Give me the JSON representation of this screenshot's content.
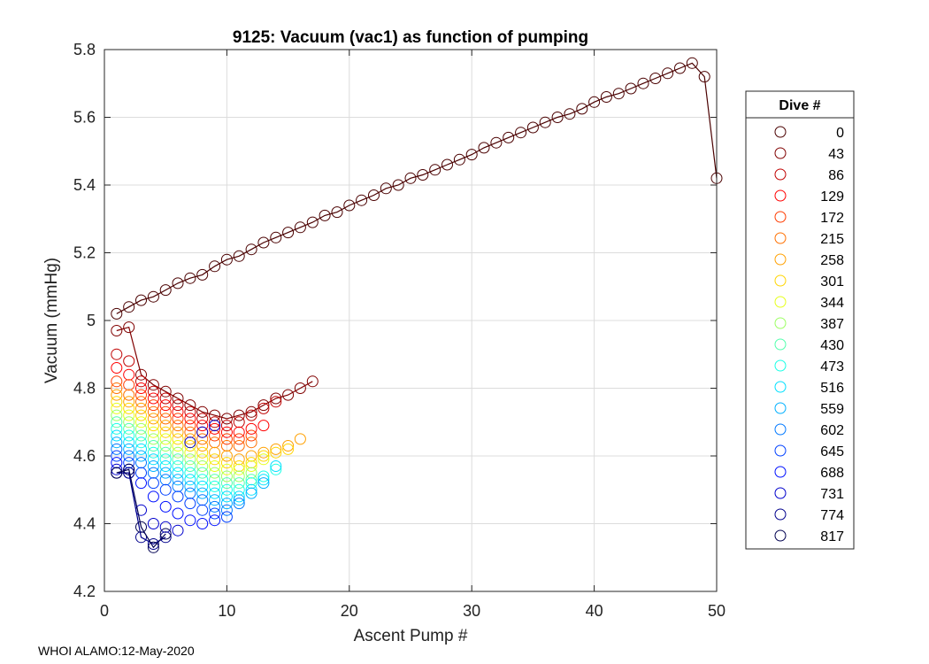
{
  "chart_data": {
    "type": "scatter",
    "title": "9125: Vacuum (vac1) as function of pumping",
    "xlabel": "Ascent Pump #",
    "ylabel": "Vacuum (mmHg)",
    "xlim": [
      0,
      50
    ],
    "ylim": [
      4.2,
      5.8
    ],
    "xticks": [
      "0",
      "10",
      "20",
      "30",
      "40",
      "50"
    ],
    "yticks": [
      "4.2",
      "4.4",
      "4.6",
      "4.8",
      "5",
      "5.2",
      "5.4",
      "5.6",
      "5.8"
    ],
    "grid": true,
    "marker": "open-circle",
    "legend": {
      "title": "Dive #",
      "position": "right",
      "entries": [
        {
          "label": "0",
          "color": "#4a0000"
        },
        {
          "label": "43",
          "color": "#800000"
        },
        {
          "label": "86",
          "color": "#c00000"
        },
        {
          "label": "129",
          "color": "#ff0000"
        },
        {
          "label": "172",
          "color": "#ff3c00"
        },
        {
          "label": "215",
          "color": "#ff7000"
        },
        {
          "label": "258",
          "color": "#ffa000"
        },
        {
          "label": "301",
          "color": "#ffd500"
        },
        {
          "label": "344",
          "color": "#e6ff19"
        },
        {
          "label": "387",
          "color": "#9cff63"
        },
        {
          "label": "430",
          "color": "#52ffad"
        },
        {
          "label": "473",
          "color": "#19ffe6"
        },
        {
          "label": "516",
          "color": "#00e0ff"
        },
        {
          "label": "559",
          "color": "#00b0ff"
        },
        {
          "label": "602",
          "color": "#0078ff"
        },
        {
          "label": "645",
          "color": "#0040ff"
        },
        {
          "label": "688",
          "color": "#0010ff"
        },
        {
          "label": "731",
          "color": "#0000cc"
        },
        {
          "label": "774",
          "color": "#00008c"
        },
        {
          "label": "817",
          "color": "#000050"
        }
      ]
    },
    "series": [
      {
        "name": "0",
        "color": "#4a0000",
        "line": true,
        "x": [
          1,
          2,
          3,
          4,
          5,
          6,
          7,
          8,
          9,
          10,
          11,
          12,
          13,
          14,
          15,
          16,
          17,
          18,
          19,
          20,
          21,
          22,
          23,
          24,
          25,
          26,
          27,
          28,
          29,
          30,
          31,
          32,
          33,
          34,
          35,
          36,
          37,
          38,
          39,
          40,
          41,
          42,
          43,
          44,
          45,
          46,
          47,
          48,
          49,
          50
        ],
        "y": [
          5.02,
          5.04,
          5.06,
          5.07,
          5.09,
          5.11,
          5.125,
          5.135,
          5.16,
          5.18,
          5.19,
          5.21,
          5.23,
          5.245,
          5.26,
          5.275,
          5.29,
          5.31,
          5.32,
          5.34,
          5.355,
          5.37,
          5.39,
          5.4,
          5.42,
          5.43,
          5.445,
          5.46,
          5.475,
          5.49,
          5.51,
          5.525,
          5.54,
          5.555,
          5.57,
          5.585,
          5.6,
          5.61,
          5.625,
          5.645,
          5.66,
          5.67,
          5.685,
          5.7,
          5.715,
          5.73,
          5.745,
          5.76,
          5.72,
          5.42
        ]
      },
      {
        "name": "43",
        "color": "#800000",
        "line": true,
        "x": [
          1,
          2,
          3,
          4,
          5,
          6,
          7,
          8,
          9,
          10,
          11,
          12,
          13,
          14,
          15,
          16,
          17
        ],
        "y": [
          4.97,
          4.98,
          4.84,
          4.81,
          4.79,
          4.77,
          4.75,
          4.73,
          4.72,
          4.71,
          4.72,
          4.73,
          4.75,
          4.77,
          4.78,
          4.8,
          4.82
        ]
      },
      {
        "name": "86",
        "color": "#c00000",
        "line": false,
        "x": [
          1,
          2,
          3,
          4,
          5,
          6,
          7,
          8,
          9,
          10,
          11,
          12,
          13,
          14
        ],
        "y": [
          4.9,
          4.88,
          4.82,
          4.79,
          4.77,
          4.75,
          4.73,
          4.71,
          4.7,
          4.69,
          4.7,
          4.72,
          4.74,
          4.76
        ]
      },
      {
        "name": "129",
        "color": "#ff0000",
        "line": false,
        "x": [
          1,
          2,
          3,
          4,
          5,
          6,
          7,
          8,
          9,
          10,
          11,
          12,
          13
        ],
        "y": [
          4.86,
          4.84,
          4.8,
          4.77,
          4.75,
          4.73,
          4.71,
          4.69,
          4.68,
          4.67,
          4.67,
          4.68,
          4.69
        ]
      },
      {
        "name": "172",
        "color": "#ff3c00",
        "line": false,
        "x": [
          1,
          2,
          3,
          4,
          5,
          6,
          7,
          8,
          9,
          10,
          11,
          12
        ],
        "y": [
          4.82,
          4.81,
          4.78,
          4.75,
          4.73,
          4.71,
          4.69,
          4.67,
          4.66,
          4.65,
          4.65,
          4.66
        ]
      },
      {
        "name": "215",
        "color": "#ff7000",
        "line": false,
        "x": [
          1,
          2,
          3,
          4,
          5,
          6,
          7,
          8,
          9,
          10,
          11,
          12
        ],
        "y": [
          4.8,
          4.78,
          4.76,
          4.73,
          4.71,
          4.69,
          4.67,
          4.65,
          4.64,
          4.63,
          4.63,
          4.64
        ]
      },
      {
        "name": "258",
        "color": "#ffa000",
        "line": false,
        "x": [
          1,
          2,
          3,
          4,
          5,
          6,
          7,
          8,
          9,
          10,
          11,
          12,
          13,
          14,
          15,
          16
        ],
        "y": [
          4.78,
          4.76,
          4.74,
          4.71,
          4.69,
          4.67,
          4.65,
          4.63,
          4.61,
          4.6,
          4.59,
          4.6,
          4.61,
          4.62,
          4.63,
          4.65
        ]
      },
      {
        "name": "301",
        "color": "#ffd500",
        "line": false,
        "x": [
          1,
          2,
          3,
          4,
          5,
          6,
          7,
          8,
          9,
          10,
          11,
          12,
          13,
          14,
          15
        ],
        "y": [
          4.76,
          4.74,
          4.72,
          4.69,
          4.67,
          4.65,
          4.63,
          4.61,
          4.59,
          4.58,
          4.57,
          4.58,
          4.6,
          4.61,
          4.62
        ]
      },
      {
        "name": "344",
        "color": "#e6ff19",
        "line": false,
        "x": [
          1,
          2,
          3,
          4,
          5,
          6,
          7,
          8,
          9,
          10,
          11,
          12,
          13
        ],
        "y": [
          4.74,
          4.72,
          4.7,
          4.67,
          4.65,
          4.63,
          4.61,
          4.59,
          4.57,
          4.56,
          4.56,
          4.57,
          4.59
        ]
      },
      {
        "name": "387",
        "color": "#9cff63",
        "line": false,
        "x": [
          1,
          2,
          3,
          4,
          5,
          6,
          7,
          8,
          9,
          10,
          11,
          12
        ],
        "y": [
          4.72,
          4.7,
          4.68,
          4.65,
          4.63,
          4.61,
          4.59,
          4.57,
          4.55,
          4.54,
          4.54,
          4.55
        ]
      },
      {
        "name": "430",
        "color": "#52ffad",
        "line": false,
        "x": [
          1,
          2,
          3,
          4,
          5,
          6,
          7,
          8,
          9,
          10,
          11,
          12
        ],
        "y": [
          4.7,
          4.68,
          4.66,
          4.63,
          4.61,
          4.59,
          4.57,
          4.55,
          4.53,
          4.52,
          4.52,
          4.53
        ]
      },
      {
        "name": "473",
        "color": "#19ffe6",
        "line": false,
        "x": [
          1,
          2,
          3,
          4,
          5,
          6,
          7,
          8,
          9,
          10,
          11,
          12,
          13,
          14
        ],
        "y": [
          4.68,
          4.66,
          4.64,
          4.61,
          4.59,
          4.57,
          4.55,
          4.53,
          4.51,
          4.5,
          4.5,
          4.52,
          4.54,
          4.56
        ]
      },
      {
        "name": "516",
        "color": "#00e0ff",
        "line": false,
        "x": [
          1,
          2,
          3,
          4,
          5,
          6,
          7,
          8,
          9,
          10,
          11,
          12,
          13,
          14
        ],
        "y": [
          4.66,
          4.64,
          4.62,
          4.59,
          4.57,
          4.55,
          4.53,
          4.51,
          4.49,
          4.48,
          4.48,
          4.5,
          4.53,
          4.57
        ]
      },
      {
        "name": "559",
        "color": "#00b0ff",
        "line": false,
        "x": [
          1,
          2,
          3,
          4,
          5,
          6,
          7,
          8,
          9,
          10,
          11,
          12,
          13
        ],
        "y": [
          4.64,
          4.62,
          4.6,
          4.57,
          4.55,
          4.53,
          4.51,
          4.49,
          4.47,
          4.46,
          4.47,
          4.49,
          4.52
        ]
      },
      {
        "name": "602",
        "color": "#0078ff",
        "line": false,
        "x": [
          1,
          2,
          3,
          4,
          5,
          6,
          7,
          8,
          9,
          10,
          11
        ],
        "y": [
          4.62,
          4.6,
          4.58,
          4.55,
          4.53,
          4.51,
          4.49,
          4.47,
          4.45,
          4.44,
          4.46
        ]
      },
      {
        "name": "645",
        "color": "#0040ff",
        "line": false,
        "x": [
          1,
          2,
          3,
          4,
          5,
          6,
          7,
          8,
          9,
          10
        ],
        "y": [
          4.6,
          4.58,
          4.55,
          4.52,
          4.5,
          4.48,
          4.46,
          4.44,
          4.43,
          4.42
        ]
      },
      {
        "name": "688",
        "color": "#0010ff",
        "line": false,
        "x": [
          1,
          2,
          3,
          4,
          5,
          6,
          7,
          8,
          9
        ],
        "y": [
          4.58,
          4.56,
          4.52,
          4.48,
          4.45,
          4.43,
          4.41,
          4.4,
          4.41
        ]
      },
      {
        "name": "731",
        "color": "#0000cc",
        "line": false,
        "x": [
          1,
          2,
          3,
          4,
          5,
          6,
          7,
          8,
          9
        ],
        "y": [
          4.56,
          4.55,
          4.44,
          4.4,
          4.39,
          4.38,
          4.64,
          4.67,
          4.69
        ]
      },
      {
        "name": "774",
        "color": "#00008c",
        "line": true,
        "x": [
          1,
          2,
          3,
          4,
          5
        ],
        "y": [
          4.55,
          4.55,
          4.36,
          4.34,
          4.36
        ]
      },
      {
        "name": "817",
        "color": "#000050",
        "line": true,
        "x": [
          1,
          2,
          3,
          4,
          5
        ],
        "y": [
          4.55,
          4.56,
          4.39,
          4.33,
          4.37
        ]
      }
    ]
  },
  "footer": "WHOI ALAMO:12-May-2020"
}
